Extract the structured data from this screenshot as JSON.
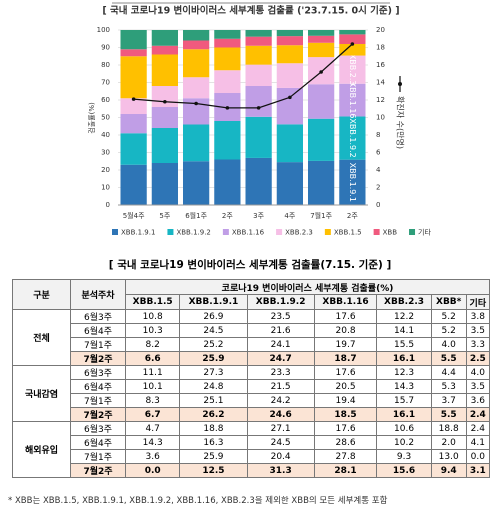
{
  "chart_data": {
    "type": "bar",
    "stacked": true,
    "title": "[ 국내 코로나19 변이바이러스 세부계통 검출률 ('23.7.15. 0시 기준) ]",
    "y_label": "검출률(%)",
    "categories": [
      "5월4주",
      "5주",
      "6월1주",
      "2주",
      "3주",
      "4주",
      "7월1주",
      "2주"
    ],
    "series": [
      {
        "name": "XBB.1.9.1",
        "color": "#2e75b6",
        "values": [
          23,
          24,
          25,
          26,
          26.9,
          24.5,
          25.2,
          25.9
        ]
      },
      {
        "name": "XBB.1.9.2",
        "color": "#17b6c4",
        "values": [
          18,
          20,
          21,
          22,
          23.5,
          21.6,
          24.1,
          24.7
        ]
      },
      {
        "name": "XBB.1.16",
        "color": "#c09ee6",
        "values": [
          11,
          12,
          15,
          16,
          17.6,
          20.8,
          19.7,
          18.7
        ]
      },
      {
        "name": "XBB.2.3",
        "color": "#f6bfe6",
        "values": [
          9,
          12,
          12,
          13,
          12.2,
          14.1,
          15.5,
          16.1
        ]
      },
      {
        "name": "XBB.1.5",
        "color": "#ffc000",
        "values": [
          24,
          18,
          16,
          13,
          10.8,
          10.3,
          8.2,
          6.6
        ]
      },
      {
        "name": "XBB",
        "color": "#f05a7e",
        "values": [
          4,
          5,
          5,
          5,
          5.2,
          5.2,
          4.0,
          5.5
        ]
      },
      {
        "name": "기타",
        "color": "#2e9e7a",
        "values": [
          11,
          9,
          6,
          5,
          3.8,
          3.5,
          3.3,
          2.5
        ]
      },
      {
        "name": "확진자 수(만명)",
        "type": "line",
        "axis": "y2",
        "color": "#111111",
        "values": [
          12.1,
          11.8,
          11.6,
          11.1,
          11.1,
          12.3,
          15.2,
          18.4
        ]
      }
    ],
    "ylim": [
      0,
      100
    ],
    "yticks": [
      0,
      10,
      20,
      30,
      40,
      50,
      60,
      70,
      80,
      90,
      100
    ],
    "y2lim": [
      0,
      20
    ],
    "y2ticks": [
      0,
      2,
      4,
      6,
      8,
      10,
      12,
      14,
      16,
      18,
      20
    ],
    "grid": true
  },
  "table": {
    "title": "[ 국내 코로나19 변이바이러스 세부계통 검출률(7.15. 기준) ]",
    "group_header": "구분",
    "week_header": "분석주차",
    "span_header": "코로나19 변이바이러스 세부계통 검출률(%)",
    "columns": [
      "XBB.1.5",
      "XBB.1.9.1",
      "XBB.1.9.2",
      "XBB.1.16",
      "XBB.2.3",
      "XBB*",
      "기타"
    ],
    "groups": [
      {
        "name": "전체",
        "rows": [
          {
            "week": "6월3주",
            "values": [
              "10.8",
              "26.9",
              "23.5",
              "17.6",
              "12.2",
              "5.2",
              "3.8"
            ]
          },
          {
            "week": "6월4주",
            "values": [
              "10.3",
              "24.5",
              "21.6",
              "20.8",
              "14.1",
              "5.2",
              "3.5"
            ]
          },
          {
            "week": "7월1주",
            "values": [
              "8.2",
              "25.2",
              "24.1",
              "19.7",
              "15.5",
              "4.0",
              "3.3"
            ]
          },
          {
            "week": "7월2주",
            "values": [
              "6.6",
              "25.9",
              "24.7",
              "18.7",
              "16.1",
              "5.5",
              "2.5"
            ]
          }
        ]
      },
      {
        "name": "국내감염",
        "rows": [
          {
            "week": "6월3주",
            "values": [
              "11.1",
              "27.3",
              "23.3",
              "17.6",
              "12.3",
              "4.4",
              "4.0"
            ]
          },
          {
            "week": "6월4주",
            "values": [
              "10.1",
              "24.8",
              "21.5",
              "20.5",
              "14.3",
              "5.3",
              "3.5"
            ]
          },
          {
            "week": "7월1주",
            "values": [
              "8.3",
              "25.1",
              "24.2",
              "19.4",
              "15.7",
              "3.7",
              "3.6"
            ]
          },
          {
            "week": "7월2주",
            "values": [
              "6.7",
              "26.2",
              "24.6",
              "18.5",
              "16.1",
              "5.5",
              "2.4"
            ]
          }
        ]
      },
      {
        "name": "해외유입",
        "rows": [
          {
            "week": "6월3주",
            "values": [
              "4.7",
              "18.8",
              "27.1",
              "17.6",
              "10.6",
              "18.8",
              "2.4"
            ]
          },
          {
            "week": "6월4주",
            "values": [
              "14.3",
              "16.3",
              "24.5",
              "28.6",
              "10.2",
              "2.0",
              "4.1"
            ]
          },
          {
            "week": "7월1주",
            "values": [
              "3.6",
              "25.9",
              "20.4",
              "27.8",
              "9.3",
              "13.0",
              "0.0"
            ]
          },
          {
            "week": "7월2주",
            "values": [
              "0.0",
              "12.5",
              "31.3",
              "28.1",
              "15.6",
              "9.4",
              "3.1"
            ]
          }
        ]
      }
    ]
  },
  "footnote": "* XBB는 XBB.1.5, XBB.1.9.1, XBB.1.9.2, XBB.1.16, XBB.2.3을 제외한 XBB의 모든 세부계통 포함"
}
